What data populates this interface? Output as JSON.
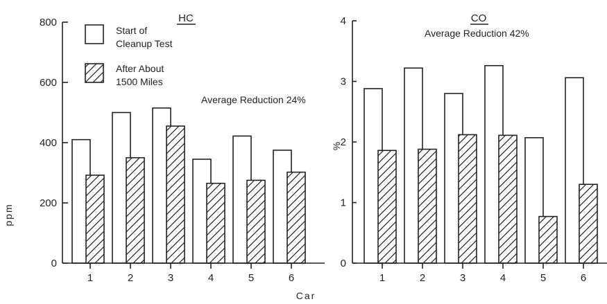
{
  "colors": {
    "ink": "#222222",
    "background": "#ffffff"
  },
  "legend": {
    "items": [
      {
        "key": "start",
        "line1": "Start of",
        "line2": "Cleanup Test",
        "pattern": "open"
      },
      {
        "key": "after",
        "line1": "After About",
        "line2": "1500 Miles",
        "pattern": "hatched"
      }
    ]
  },
  "shared_xlabel": "Car",
  "chart_data": [
    {
      "type": "bar",
      "title": "HC",
      "ylabel": "ppm",
      "annotation": "Average Reduction 24%",
      "categories": [
        "1",
        "2",
        "3",
        "4",
        "5",
        "6"
      ],
      "ylim": [
        0,
        800
      ],
      "yticks": [
        0,
        200,
        400,
        600,
        800
      ],
      "ytick_labels": [
        "0",
        "200",
        "400",
        "600",
        "800"
      ],
      "series": [
        {
          "name": "Start of Cleanup Test",
          "pattern": "open",
          "values": [
            410,
            500,
            515,
            345,
            422,
            375
          ]
        },
        {
          "name": "After About 1500 Miles",
          "pattern": "hatched",
          "values": [
            292,
            350,
            455,
            265,
            275,
            302
          ]
        }
      ]
    },
    {
      "type": "bar",
      "title": "CO",
      "ylabel": "%",
      "annotation": "Average Reduction 42%",
      "categories": [
        "1",
        "2",
        "3",
        "4",
        "5",
        "6"
      ],
      "ylim": [
        0,
        4
      ],
      "yticks": [
        0,
        1,
        2,
        3,
        4
      ],
      "ytick_labels": [
        "0",
        "1",
        "2",
        "3",
        "4"
      ],
      "series": [
        {
          "name": "Start of Cleanup Test",
          "pattern": "open",
          "values": [
            2.88,
            3.22,
            2.8,
            3.26,
            2.07,
            3.06
          ]
        },
        {
          "name": "After About 1500 Miles",
          "pattern": "hatched",
          "values": [
            1.86,
            1.88,
            2.12,
            2.11,
            0.77,
            1.3
          ]
        }
      ]
    }
  ]
}
